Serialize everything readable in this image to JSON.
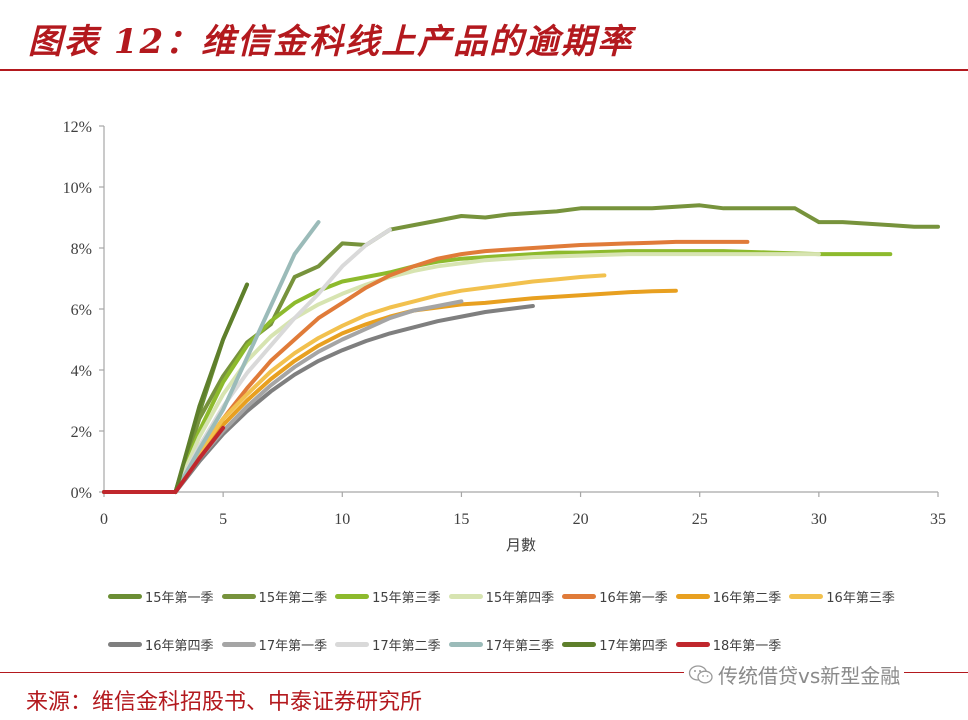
{
  "header": {
    "title": "图表 12：维信金科线上产品的逾期率"
  },
  "footer": {
    "source": "来源：维信金科招股书、中泰证券研究所",
    "watermark": "传统借贷vs新型金融",
    "watermark_icon": "wechat-icon"
  },
  "colors": {
    "brand_red": "#b3191e",
    "axis": "#a6a6a6"
  },
  "chart_data": {
    "type": "line",
    "title": "维信金科线上产品的逾期率",
    "xlabel": "月數",
    "ylabel": "",
    "xlim": [
      0,
      35
    ],
    "ylim": [
      0,
      12
    ],
    "x_ticks": [
      "0",
      "5",
      "10",
      "15",
      "20",
      "25",
      "30",
      "35"
    ],
    "y_ticks": [
      "0%",
      "2%",
      "4%",
      "6%",
      "8%",
      "10%",
      "12%"
    ],
    "grid": false,
    "legend_position": "bottom",
    "series": [
      {
        "name": "15年第一季",
        "color": "#6b8e34",
        "points": [
          [
            0,
            0
          ],
          [
            3,
            0
          ],
          [
            4,
            2.6
          ],
          [
            5,
            5.0
          ],
          [
            6,
            6.8
          ]
        ]
      },
      {
        "name": "15年第二季",
        "color": "#77933c",
        "points": [
          [
            0,
            0
          ],
          [
            3,
            0
          ],
          [
            4,
            2.4
          ],
          [
            5,
            3.8
          ],
          [
            6,
            4.9
          ],
          [
            7,
            5.5
          ],
          [
            8,
            7.05
          ],
          [
            9,
            7.4
          ],
          [
            10,
            8.15
          ],
          [
            11,
            8.1
          ],
          [
            12,
            8.6
          ],
          [
            13,
            8.75
          ],
          [
            14,
            8.9
          ],
          [
            15,
            9.05
          ],
          [
            16,
            9.0
          ],
          [
            17,
            9.1
          ],
          [
            18,
            9.15
          ],
          [
            19,
            9.2
          ],
          [
            20,
            9.3
          ],
          [
            21,
            9.3
          ],
          [
            22,
            9.3
          ],
          [
            23,
            9.3
          ],
          [
            24,
            9.35
          ],
          [
            25,
            9.4
          ],
          [
            26,
            9.3
          ],
          [
            27,
            9.3
          ],
          [
            28,
            9.3
          ],
          [
            29,
            9.3
          ],
          [
            30,
            8.85
          ],
          [
            31,
            8.85
          ],
          [
            32,
            8.8
          ],
          [
            33,
            8.75
          ],
          [
            34,
            8.7
          ],
          [
            35,
            8.7
          ]
        ]
      },
      {
        "name": "15年第三季",
        "color": "#8dba2d",
        "points": [
          [
            3,
            0
          ],
          [
            4,
            2.0
          ],
          [
            5,
            3.6
          ],
          [
            6,
            4.8
          ],
          [
            7,
            5.6
          ],
          [
            8,
            6.2
          ],
          [
            9,
            6.6
          ],
          [
            10,
            6.9
          ],
          [
            11,
            7.05
          ],
          [
            12,
            7.2
          ],
          [
            13,
            7.4
          ],
          [
            14,
            7.55
          ],
          [
            15,
            7.65
          ],
          [
            16,
            7.7
          ],
          [
            17,
            7.75
          ],
          [
            18,
            7.8
          ],
          [
            19,
            7.85
          ],
          [
            20,
            7.85
          ],
          [
            22,
            7.9
          ],
          [
            24,
            7.9
          ],
          [
            26,
            7.9
          ],
          [
            28,
            7.85
          ],
          [
            30,
            7.8
          ],
          [
            31,
            7.8
          ],
          [
            32,
            7.8
          ],
          [
            33,
            7.8
          ]
        ]
      },
      {
        "name": "15年第四季",
        "color": "#d7e4b1",
        "points": [
          [
            3,
            0
          ],
          [
            4,
            1.8
          ],
          [
            5,
            3.2
          ],
          [
            6,
            4.3
          ],
          [
            7,
            5.1
          ],
          [
            8,
            5.7
          ],
          [
            9,
            6.15
          ],
          [
            10,
            6.5
          ],
          [
            11,
            6.8
          ],
          [
            12,
            7.05
          ],
          [
            13,
            7.25
          ],
          [
            14,
            7.4
          ],
          [
            15,
            7.5
          ],
          [
            16,
            7.6
          ],
          [
            18,
            7.7
          ],
          [
            20,
            7.75
          ],
          [
            22,
            7.8
          ],
          [
            24,
            7.8
          ],
          [
            26,
            7.8
          ],
          [
            28,
            7.8
          ],
          [
            30,
            7.8
          ]
        ]
      },
      {
        "name": "16年第一季",
        "color": "#e07b39",
        "points": [
          [
            3,
            0
          ],
          [
            4,
            1.3
          ],
          [
            5,
            2.4
          ],
          [
            6,
            3.4
          ],
          [
            7,
            4.3
          ],
          [
            8,
            5.0
          ],
          [
            9,
            5.7
          ],
          [
            10,
            6.2
          ],
          [
            11,
            6.7
          ],
          [
            12,
            7.1
          ],
          [
            13,
            7.4
          ],
          [
            14,
            7.65
          ],
          [
            15,
            7.8
          ],
          [
            16,
            7.9
          ],
          [
            17,
            7.95
          ],
          [
            18,
            8.0
          ],
          [
            19,
            8.05
          ],
          [
            20,
            8.1
          ],
          [
            21,
            8.12
          ],
          [
            22,
            8.15
          ],
          [
            23,
            8.17
          ],
          [
            24,
            8.2
          ],
          [
            25,
            8.2
          ],
          [
            26,
            8.2
          ],
          [
            27,
            8.2
          ]
        ]
      },
      {
        "name": "16年第二季",
        "color": "#e8a020",
        "points": [
          [
            3,
            0
          ],
          [
            4,
            1.2
          ],
          [
            5,
            2.2
          ],
          [
            6,
            3.0
          ],
          [
            7,
            3.7
          ],
          [
            8,
            4.3
          ],
          [
            9,
            4.8
          ],
          [
            10,
            5.2
          ],
          [
            11,
            5.5
          ],
          [
            12,
            5.75
          ],
          [
            13,
            5.95
          ],
          [
            14,
            6.05
          ],
          [
            15,
            6.15
          ],
          [
            16,
            6.2
          ],
          [
            17,
            6.28
          ],
          [
            18,
            6.35
          ],
          [
            19,
            6.4
          ],
          [
            20,
            6.45
          ],
          [
            21,
            6.5
          ],
          [
            22,
            6.55
          ],
          [
            23,
            6.58
          ],
          [
            24,
            6.6
          ]
        ]
      },
      {
        "name": "16年第三季",
        "color": "#f2c14e",
        "points": [
          [
            3,
            0
          ],
          [
            4,
            1.3
          ],
          [
            5,
            2.4
          ],
          [
            6,
            3.2
          ],
          [
            7,
            3.95
          ],
          [
            8,
            4.55
          ],
          [
            9,
            5.05
          ],
          [
            10,
            5.45
          ],
          [
            11,
            5.8
          ],
          [
            12,
            6.05
          ],
          [
            13,
            6.25
          ],
          [
            14,
            6.45
          ],
          [
            15,
            6.6
          ],
          [
            16,
            6.7
          ],
          [
            17,
            6.8
          ],
          [
            18,
            6.9
          ],
          [
            19,
            6.97
          ],
          [
            20,
            7.05
          ],
          [
            21,
            7.1
          ]
        ]
      },
      {
        "name": "16年第四季",
        "color": "#7f7f7f",
        "points": [
          [
            3,
            0
          ],
          [
            4,
            1.0
          ],
          [
            5,
            1.9
          ],
          [
            6,
            2.65
          ],
          [
            7,
            3.3
          ],
          [
            8,
            3.85
          ],
          [
            9,
            4.3
          ],
          [
            10,
            4.65
          ],
          [
            11,
            4.95
          ],
          [
            12,
            5.2
          ],
          [
            13,
            5.4
          ],
          [
            14,
            5.6
          ],
          [
            15,
            5.75
          ],
          [
            16,
            5.9
          ],
          [
            17,
            6.0
          ],
          [
            18,
            6.1
          ]
        ]
      },
      {
        "name": "17年第一季",
        "color": "#a5a5a5",
        "points": [
          [
            3,
            0
          ],
          [
            4,
            1.1
          ],
          [
            5,
            2.0
          ],
          [
            6,
            2.8
          ],
          [
            7,
            3.5
          ],
          [
            8,
            4.1
          ],
          [
            9,
            4.6
          ],
          [
            10,
            5.0
          ],
          [
            11,
            5.35
          ],
          [
            12,
            5.7
          ],
          [
            13,
            5.95
          ],
          [
            14,
            6.1
          ],
          [
            15,
            6.25
          ]
        ]
      },
      {
        "name": "17年第二季",
        "color": "#d9d9d9",
        "points": [
          [
            3,
            0
          ],
          [
            4,
            1.5
          ],
          [
            5,
            2.8
          ],
          [
            6,
            3.9
          ],
          [
            7,
            4.8
          ],
          [
            8,
            5.7
          ],
          [
            9,
            6.5
          ],
          [
            10,
            7.4
          ],
          [
            11,
            8.1
          ],
          [
            12,
            8.6
          ]
        ]
      },
      {
        "name": "17年第三季",
        "color": "#9bbbb9",
        "points": [
          [
            3,
            0
          ],
          [
            4,
            1.4
          ],
          [
            5,
            2.7
          ],
          [
            6,
            4.4
          ],
          [
            7,
            6.1
          ],
          [
            8,
            7.8
          ],
          [
            9,
            8.85
          ]
        ]
      },
      {
        "name": "17年第四季",
        "color": "#5e7f2b",
        "points": [
          [
            3,
            0
          ],
          [
            4,
            2.8
          ],
          [
            5,
            5.0
          ],
          [
            6,
            6.8
          ]
        ]
      },
      {
        "name": "18年第一季",
        "color": "#c0272d",
        "points": [
          [
            0,
            0
          ],
          [
            3,
            0
          ],
          [
            4,
            1.1
          ],
          [
            5,
            2.1
          ]
        ]
      }
    ]
  }
}
